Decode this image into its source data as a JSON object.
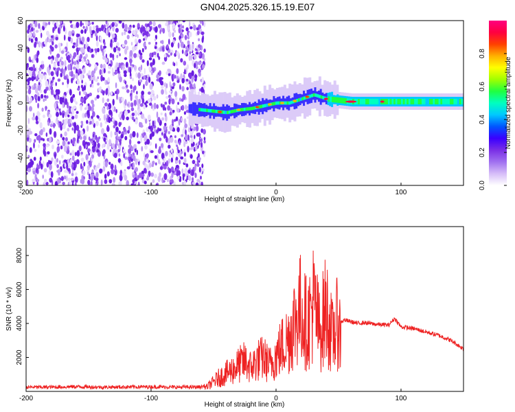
{
  "title": "GN04.2025.326.15.19.E07",
  "chart_data": [
    {
      "type": "heatmap",
      "xlabel": "Height of straight line (km)",
      "ylabel": "Frequency (Hz)",
      "xlim": [
        -200,
        150
      ],
      "ylim": [
        -60,
        60
      ],
      "xticks": [
        -200,
        -100,
        0,
        100
      ],
      "yticks": [
        -60,
        -40,
        -20,
        0,
        20,
        40,
        60
      ],
      "noise_region_x": [
        -200,
        -57
      ],
      "ridge": {
        "x": [
          -70,
          -60,
          -50,
          -40,
          -30,
          -20,
          -10,
          0,
          10,
          20,
          30,
          40,
          50,
          60,
          70,
          85,
          100,
          120,
          150
        ],
        "y": [
          -4,
          -5,
          -6,
          -7,
          -5,
          -4,
          -2,
          0,
          0,
          3,
          6,
          3,
          2,
          1,
          1,
          1,
          1,
          1,
          1
        ]
      },
      "colorbar": {
        "label": "Normalized spectral amplitude",
        "range": [
          0,
          1
        ],
        "ticks": [
          "0.0",
          "0.2",
          "0.4",
          "0.6",
          "0.8"
        ],
        "colors": [
          "#ffffff",
          "#d6bdf8",
          "#a070f0",
          "#7a2fe6",
          "#3a00ff",
          "#0055ff",
          "#00c8ff",
          "#00ffc0",
          "#20ff40",
          "#a0ff00",
          "#ffff00",
          "#ffb000",
          "#ff4000",
          "#ff0040",
          "#ff0080"
        ]
      }
    },
    {
      "type": "line",
      "xlabel": "Height of straight line (km)",
      "ylabel": "SNR (10 * v/v)",
      "xlim": [
        -200,
        150
      ],
      "ylim": [
        0,
        9700
      ],
      "xticks": [
        -200,
        -100,
        0,
        100
      ],
      "yticks": [
        2000,
        4000,
        6000,
        8000
      ],
      "color": "#ee2222",
      "series": [
        {
          "x": [
            -200,
            -180,
            -160,
            -140,
            -120,
            -100,
            -80,
            -60,
            -55,
            -50,
            -45,
            -40,
            -35,
            -30,
            -25,
            -20,
            -15,
            -10,
            -5,
            0,
            5,
            10,
            15,
            20,
            25,
            30,
            35,
            40,
            45,
            50,
            52,
            55,
            60,
            65,
            70,
            80,
            90,
            95,
            100,
            110,
            120,
            130,
            140,
            150
          ],
          "values": [
            250,
            250,
            280,
            250,
            260,
            270,
            250,
            260,
            400,
            800,
            1200,
            1500,
            1800,
            2200,
            2500,
            2000,
            2600,
            2800,
            2200,
            3000,
            3800,
            4500,
            6000,
            7000,
            5500,
            7500,
            5000,
            7000,
            4500,
            6000,
            4100,
            4200,
            4100,
            4000,
            4050,
            3950,
            3900,
            4300,
            3800,
            3700,
            3500,
            3300,
            3000,
            2500
          ]
        }
      ]
    }
  ]
}
